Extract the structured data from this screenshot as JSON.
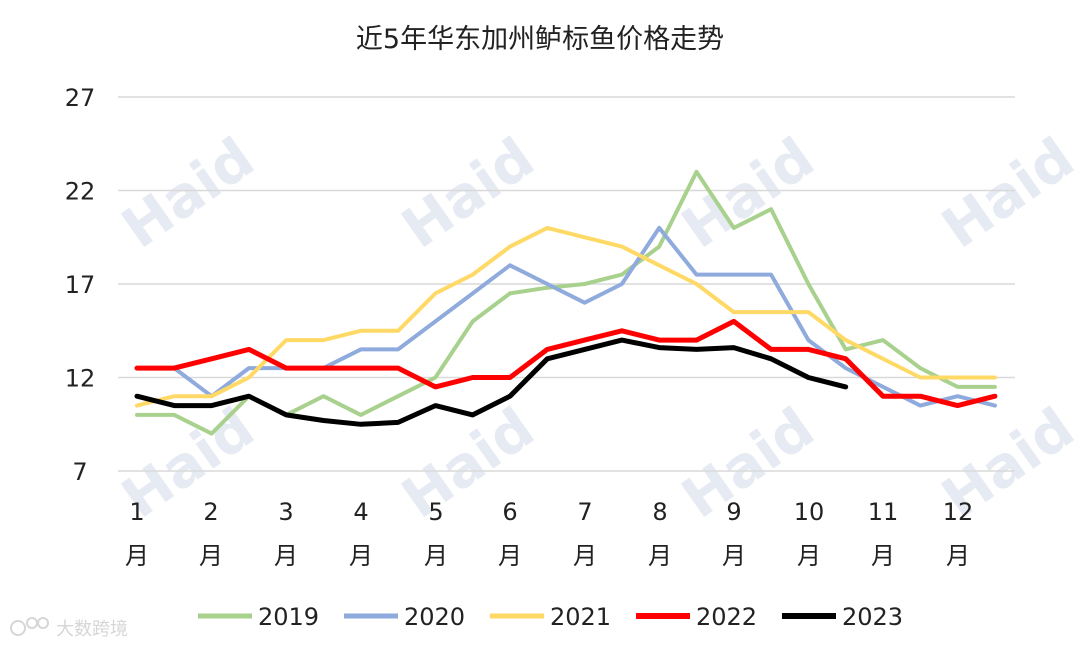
{
  "chart_data": {
    "type": "line",
    "title": "近5年华东加州鲈标鱼价格走势",
    "xlabel": "",
    "ylabel": "",
    "ylim": [
      7,
      27
    ],
    "yticks": [
      "7",
      "12",
      "17",
      "22",
      "27"
    ],
    "x_labels": [
      {
        "num": "1",
        "unit": "月"
      },
      {
        "num": "2",
        "unit": "月"
      },
      {
        "num": "3",
        "unit": "月"
      },
      {
        "num": "4",
        "unit": "月"
      },
      {
        "num": "5",
        "unit": "月"
      },
      {
        "num": "6",
        "unit": "月"
      },
      {
        "num": "7",
        "unit": "月"
      },
      {
        "num": "8",
        "unit": "月"
      },
      {
        "num": "9",
        "unit": "月"
      },
      {
        "num": "10",
        "unit": "月"
      },
      {
        "num": "11",
        "unit": "月"
      },
      {
        "num": "12",
        "unit": "月"
      }
    ],
    "x_step": 0.5,
    "series": [
      {
        "name": "2019",
        "color": "#a9d18e",
        "width": 4,
        "values": [
          10,
          10,
          9,
          11,
          10,
          11,
          10,
          11,
          12,
          15,
          16.5,
          16.8,
          17,
          17.5,
          19,
          23,
          20,
          21,
          17,
          13.5,
          14,
          12.5,
          11.5,
          11.5
        ]
      },
      {
        "name": "2020",
        "color": "#8faadc",
        "width": 4,
        "values": [
          12.5,
          12.5,
          11,
          12.5,
          12.5,
          12.5,
          13.5,
          13.5,
          15,
          16.5,
          18,
          17,
          16,
          17,
          20,
          17.5,
          17.5,
          17.5,
          14,
          12.5,
          11.5,
          10.5,
          11,
          10.5
        ]
      },
      {
        "name": "2021",
        "color": "#ffd966",
        "width": 4,
        "values": [
          10.5,
          11,
          11,
          12,
          14,
          14,
          14.5,
          14.5,
          16.5,
          17.5,
          19,
          20,
          19.5,
          19,
          18,
          17,
          15.5,
          15.5,
          15.5,
          14,
          13,
          12,
          12,
          12
        ]
      },
      {
        "name": "2022",
        "color": "#ff0000",
        "width": 5,
        "values": [
          12.5,
          12.5,
          13,
          13.5,
          12.5,
          12.5,
          12.5,
          12.5,
          11.5,
          12,
          12,
          13.5,
          14,
          14.5,
          14,
          14,
          15,
          13.5,
          13.5,
          13,
          11,
          11,
          10.5,
          11
        ]
      },
      {
        "name": "2023",
        "color": "#000000",
        "width": 5,
        "values": [
          11,
          10.5,
          10.5,
          11,
          10,
          9.7,
          9.5,
          9.6,
          10.5,
          10,
          11,
          13,
          13.5,
          14,
          13.6,
          13.5,
          13.6,
          13,
          12,
          11.5
        ]
      }
    ],
    "legend_position": "bottom",
    "grid": true
  },
  "watermark": {
    "text": "Haid"
  },
  "source_label": {
    "icon": "weibo-icon",
    "text": "大数跨境"
  }
}
